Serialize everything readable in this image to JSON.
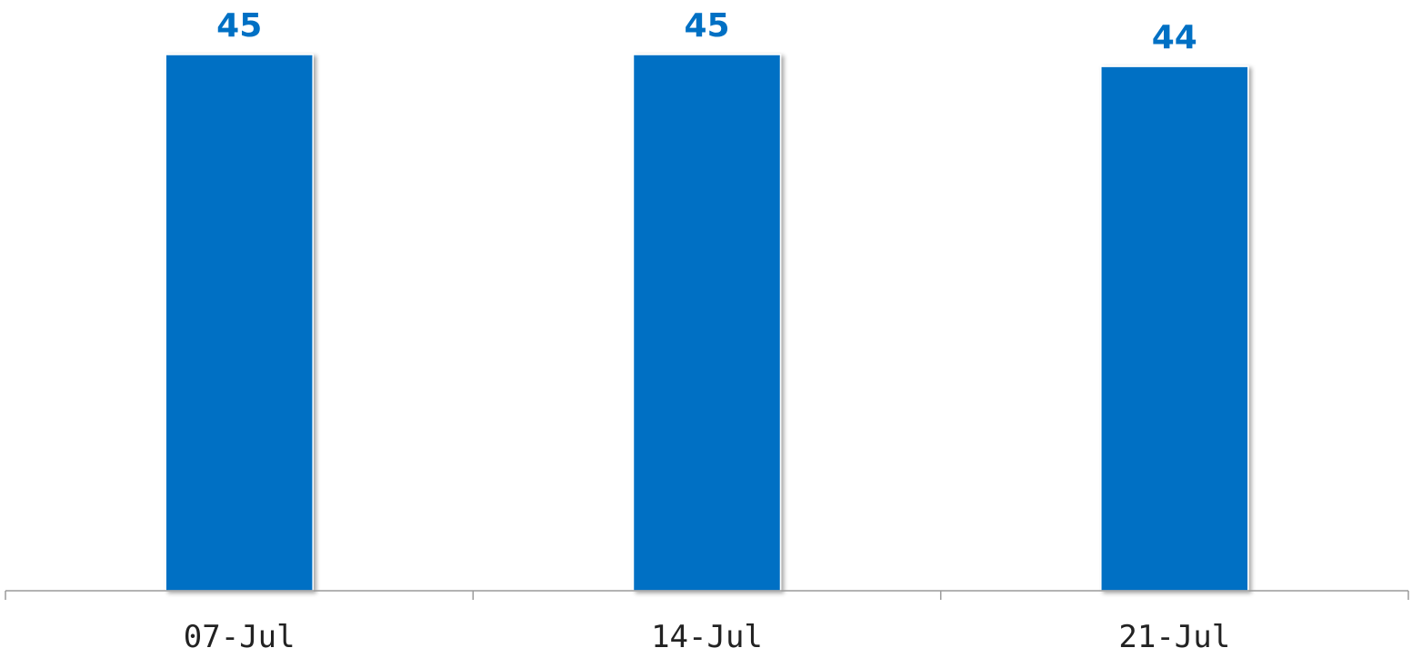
{
  "colors": {
    "bar": "#0070C4",
    "value_label": "#0070C4",
    "axis": "#9a9a9a",
    "tick_label": "#222222"
  },
  "chart_data": {
    "type": "bar",
    "categories": [
      "07-Jul",
      "14-Jul",
      "21-Jul"
    ],
    "values": [
      45,
      45,
      44
    ],
    "value_labels": [
      "45",
      "45",
      "44"
    ],
    "title": "",
    "xlabel": "",
    "ylabel": "",
    "ylim": [
      0,
      45
    ],
    "grid": false,
    "legend": "none"
  }
}
